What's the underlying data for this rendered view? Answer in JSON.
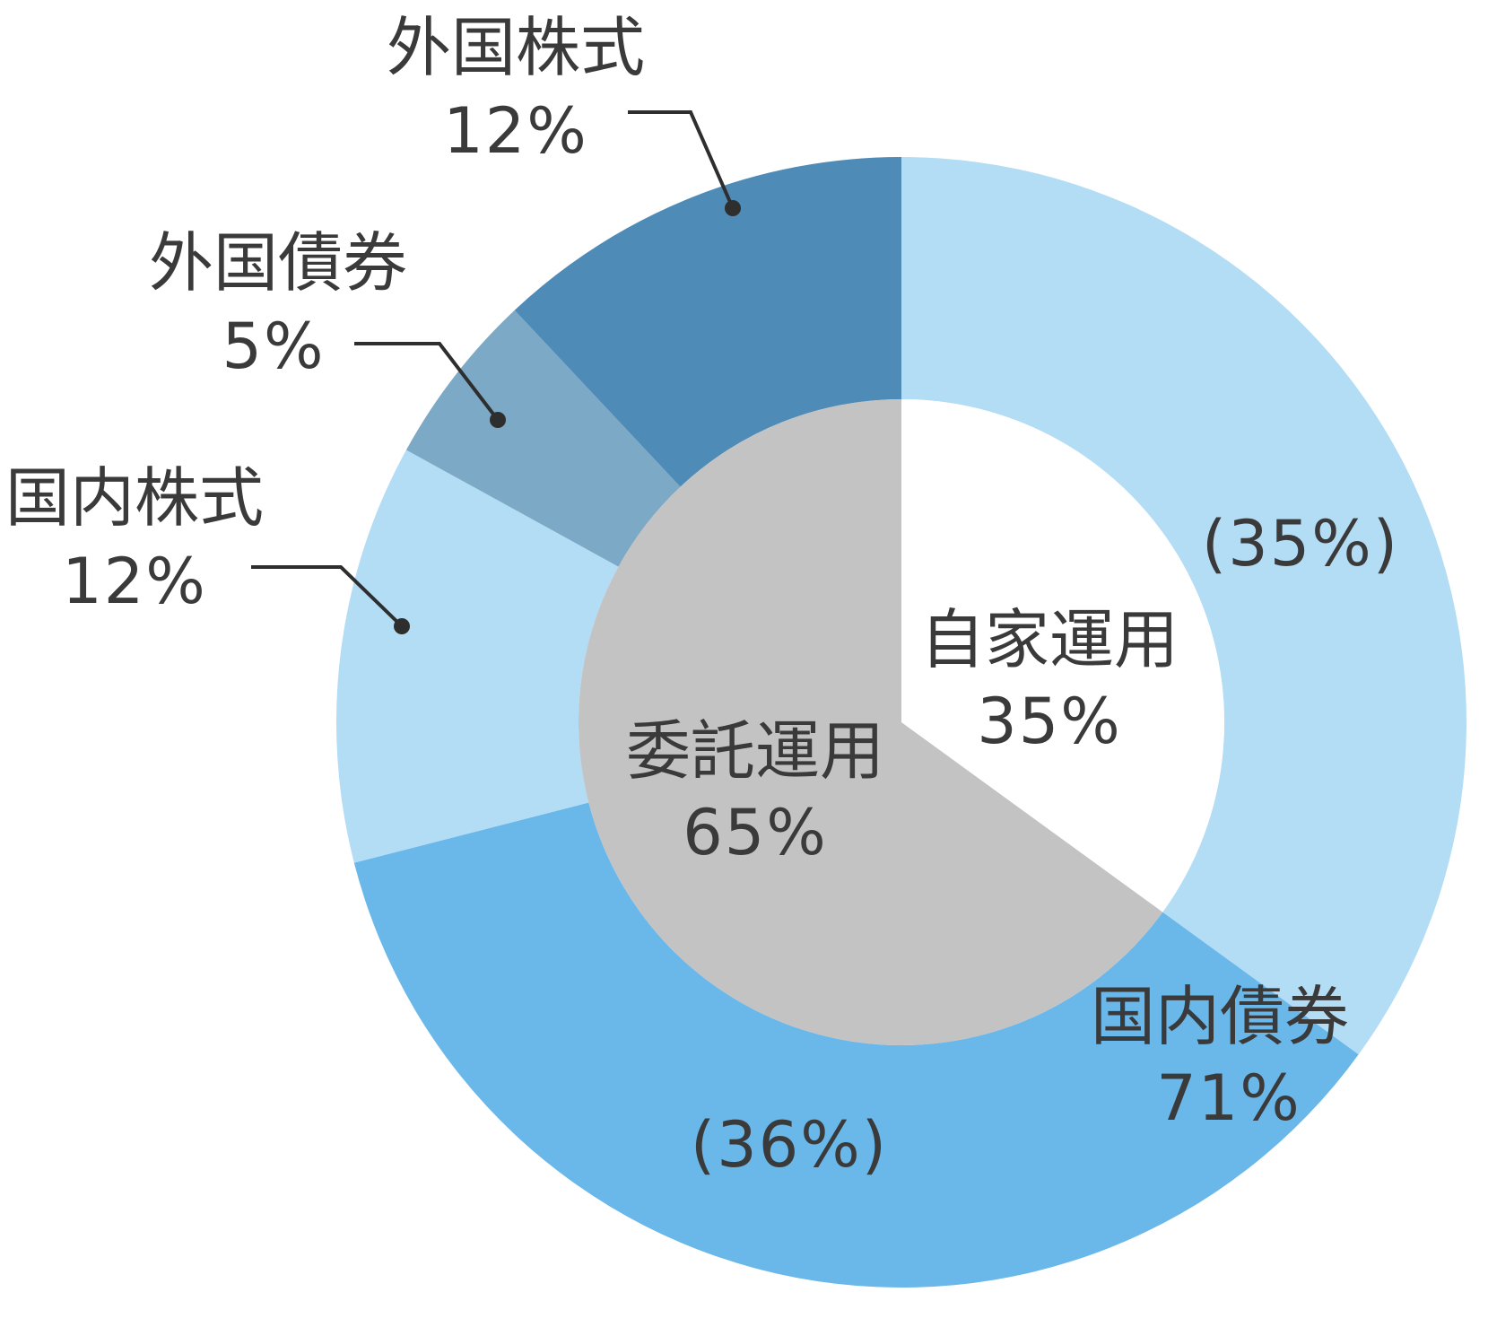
{
  "chart_data": {
    "type": "pie",
    "outer_ring": {
      "unit": "%",
      "slices": [
        {
          "name": "国内債券",
          "value": 35,
          "percent_label": "(35%)",
          "color": "#b3dcf5"
        },
        {
          "name": "国内債券",
          "value": 36,
          "percent_label": "(36%)",
          "color": "#6ab7ea"
        },
        {
          "name": "国内株式",
          "value": 12,
          "percent_label": "12%",
          "color": "#b3dcf5"
        },
        {
          "name": "外国債券",
          "value": 5,
          "percent_label": "5%",
          "color": "#7ba9c6"
        },
        {
          "name": "外国株式",
          "value": 12,
          "percent_label": "12%",
          "color": "#4e8bb7"
        }
      ],
      "group_labels": [
        {
          "name": "国内債券",
          "value": 71,
          "percent_label": "71%"
        }
      ]
    },
    "inner_pie": {
      "unit": "%",
      "slices": [
        {
          "name": "自家運用",
          "value": 35,
          "percent_label": "35%",
          "color": "#ffffff"
        },
        {
          "name": "委託運用",
          "value": 65,
          "percent_label": "65%",
          "color": "#c3c3c3"
        }
      ]
    }
  }
}
